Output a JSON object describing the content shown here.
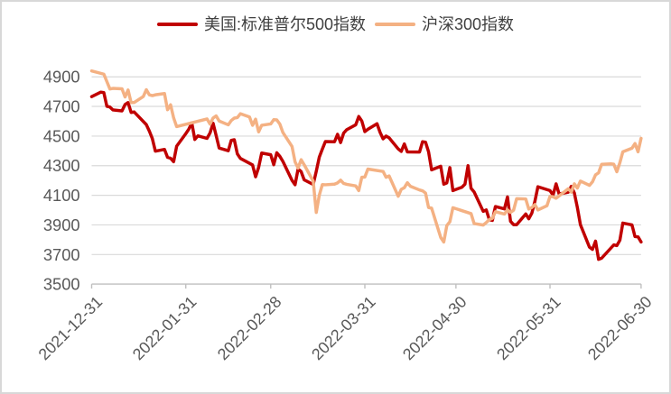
{
  "chart": {
    "frame_border_color": "#d8d8d8",
    "background": "#ffffff"
  },
  "chart_data": {
    "type": "line",
    "title": "",
    "xlabel": "",
    "ylabel": "",
    "ylim": [
      3500,
      4900
    ],
    "ytick_step": 200,
    "ytick_labels": [
      "3500",
      "3700",
      "3900",
      "4100",
      "4300",
      "4500",
      "4700",
      "4900"
    ],
    "xtick_labels": [
      "2021-12-31",
      "2022-01-31",
      "2022-02-28",
      "2022-03-31",
      "2022-04-30",
      "2022-05-31",
      "2022-06-30"
    ],
    "x_range": [
      "2021-12-31",
      "2022-06-30"
    ],
    "grid": "horizontal",
    "grid_color": "#d9d9d9",
    "axis_color": "#bfbfbf",
    "tick_label_color": "#595959",
    "legend_position": "top-center",
    "series": [
      {
        "name": "美国:标准普尔500指数",
        "color": "#c00000",
        "points": [
          [
            "2021-12-31",
            4766
          ],
          [
            "2022-01-03",
            4797
          ],
          [
            "2022-01-04",
            4793
          ],
          [
            "2022-01-05",
            4701
          ],
          [
            "2022-01-06",
            4696
          ],
          [
            "2022-01-07",
            4677
          ],
          [
            "2022-01-10",
            4670
          ],
          [
            "2022-01-11",
            4713
          ],
          [
            "2022-01-12",
            4726
          ],
          [
            "2022-01-13",
            4659
          ],
          [
            "2022-01-14",
            4663
          ],
          [
            "2022-01-18",
            4577
          ],
          [
            "2022-01-19",
            4533
          ],
          [
            "2022-01-20",
            4483
          ],
          [
            "2022-01-21",
            4398
          ],
          [
            "2022-01-24",
            4410
          ],
          [
            "2022-01-25",
            4356
          ],
          [
            "2022-01-26",
            4350
          ],
          [
            "2022-01-27",
            4327
          ],
          [
            "2022-01-28",
            4432
          ],
          [
            "2022-01-31",
            4516
          ],
          [
            "2022-02-01",
            4547
          ],
          [
            "2022-02-02",
            4589
          ],
          [
            "2022-02-03",
            4477
          ],
          [
            "2022-02-04",
            4501
          ],
          [
            "2022-02-07",
            4484
          ],
          [
            "2022-02-08",
            4521
          ],
          [
            "2022-02-09",
            4587
          ],
          [
            "2022-02-10",
            4504
          ],
          [
            "2022-02-11",
            4419
          ],
          [
            "2022-02-14",
            4401
          ],
          [
            "2022-02-15",
            4471
          ],
          [
            "2022-02-16",
            4475
          ],
          [
            "2022-02-17",
            4380
          ],
          [
            "2022-02-18",
            4349
          ],
          [
            "2022-02-22",
            4305
          ],
          [
            "2022-02-23",
            4225
          ],
          [
            "2022-02-24",
            4288
          ],
          [
            "2022-02-25",
            4385
          ],
          [
            "2022-02-28",
            4374
          ],
          [
            "2022-03-01",
            4306
          ],
          [
            "2022-03-02",
            4387
          ],
          [
            "2022-03-03",
            4363
          ],
          [
            "2022-03-04",
            4329
          ],
          [
            "2022-03-07",
            4201
          ],
          [
            "2022-03-08",
            4171
          ],
          [
            "2022-03-09",
            4278
          ],
          [
            "2022-03-10",
            4260
          ],
          [
            "2022-03-11",
            4204
          ],
          [
            "2022-03-14",
            4173
          ],
          [
            "2022-03-15",
            4262
          ],
          [
            "2022-03-16",
            4358
          ],
          [
            "2022-03-17",
            4412
          ],
          [
            "2022-03-18",
            4463
          ],
          [
            "2022-03-21",
            4461
          ],
          [
            "2022-03-22",
            4512
          ],
          [
            "2022-03-23",
            4456
          ],
          [
            "2022-03-24",
            4520
          ],
          [
            "2022-03-25",
            4543
          ],
          [
            "2022-03-28",
            4576
          ],
          [
            "2022-03-29",
            4632
          ],
          [
            "2022-03-30",
            4602
          ],
          [
            "2022-03-31",
            4530
          ],
          [
            "2022-04-01",
            4546
          ],
          [
            "2022-04-04",
            4583
          ],
          [
            "2022-04-05",
            4525
          ],
          [
            "2022-04-06",
            4481
          ],
          [
            "2022-04-07",
            4500
          ],
          [
            "2022-04-08",
            4488
          ],
          [
            "2022-04-11",
            4413
          ],
          [
            "2022-04-12",
            4397
          ],
          [
            "2022-04-13",
            4447
          ],
          [
            "2022-04-14",
            4393
          ],
          [
            "2022-04-18",
            4392
          ],
          [
            "2022-04-19",
            4462
          ],
          [
            "2022-04-20",
            4459
          ],
          [
            "2022-04-21",
            4394
          ],
          [
            "2022-04-22",
            4272
          ],
          [
            "2022-04-25",
            4296
          ],
          [
            "2022-04-26",
            4175
          ],
          [
            "2022-04-27",
            4184
          ],
          [
            "2022-04-28",
            4287
          ],
          [
            "2022-04-29",
            4132
          ],
          [
            "2022-05-02",
            4155
          ],
          [
            "2022-05-03",
            4175
          ],
          [
            "2022-05-04",
            4300
          ],
          [
            "2022-05-05",
            4147
          ],
          [
            "2022-05-06",
            4123
          ],
          [
            "2022-05-09",
            3991
          ],
          [
            "2022-05-10",
            4001
          ],
          [
            "2022-05-11",
            3935
          ],
          [
            "2022-05-12",
            3930
          ],
          [
            "2022-05-13",
            4024
          ],
          [
            "2022-05-16",
            4008
          ],
          [
            "2022-05-17",
            4089
          ],
          [
            "2022-05-18",
            3924
          ],
          [
            "2022-05-19",
            3901
          ],
          [
            "2022-05-20",
            3901
          ],
          [
            "2022-05-23",
            3974
          ],
          [
            "2022-05-24",
            3941
          ],
          [
            "2022-05-25",
            3979
          ],
          [
            "2022-05-26",
            4058
          ],
          [
            "2022-05-27",
            4158
          ],
          [
            "2022-05-31",
            4132
          ],
          [
            "2022-06-01",
            4101
          ],
          [
            "2022-06-02",
            4177
          ],
          [
            "2022-06-03",
            4109
          ],
          [
            "2022-06-06",
            4121
          ],
          [
            "2022-06-07",
            4160
          ],
          [
            "2022-06-08",
            4116
          ],
          [
            "2022-06-09",
            4017
          ],
          [
            "2022-06-10",
            3901
          ],
          [
            "2022-06-13",
            3750
          ],
          [
            "2022-06-14",
            3735
          ],
          [
            "2022-06-15",
            3790
          ],
          [
            "2022-06-16",
            3667
          ],
          [
            "2022-06-17",
            3675
          ],
          [
            "2022-06-21",
            3765
          ],
          [
            "2022-06-22",
            3760
          ],
          [
            "2022-06-23",
            3796
          ],
          [
            "2022-06-24",
            3912
          ],
          [
            "2022-06-27",
            3900
          ],
          [
            "2022-06-28",
            3821
          ],
          [
            "2022-06-29",
            3819
          ],
          [
            "2022-06-30",
            3785
          ]
        ]
      },
      {
        "name": "沪深300指数",
        "color": "#f4b183",
        "points": [
          [
            "2021-12-31",
            4940
          ],
          [
            "2022-01-04",
            4918
          ],
          [
            "2022-01-05",
            4868
          ],
          [
            "2022-01-06",
            4818
          ],
          [
            "2022-01-07",
            4822
          ],
          [
            "2022-01-10",
            4819
          ],
          [
            "2022-01-11",
            4764
          ],
          [
            "2022-01-12",
            4811
          ],
          [
            "2022-01-13",
            4726
          ],
          [
            "2022-01-14",
            4727
          ],
          [
            "2022-01-17",
            4767
          ],
          [
            "2022-01-18",
            4813
          ],
          [
            "2022-01-19",
            4778
          ],
          [
            "2022-01-20",
            4773
          ],
          [
            "2022-01-21",
            4779
          ],
          [
            "2022-01-24",
            4787
          ],
          [
            "2022-01-25",
            4678
          ],
          [
            "2022-01-26",
            4711
          ],
          [
            "2022-01-27",
            4623
          ],
          [
            "2022-01-28",
            4564
          ],
          [
            "2022-02-07",
            4616
          ],
          [
            "2022-02-08",
            4581
          ],
          [
            "2022-02-09",
            4622
          ],
          [
            "2022-02-10",
            4636
          ],
          [
            "2022-02-11",
            4601
          ],
          [
            "2022-02-14",
            4576
          ],
          [
            "2022-02-15",
            4605
          ],
          [
            "2022-02-16",
            4621
          ],
          [
            "2022-02-17",
            4625
          ],
          [
            "2022-02-18",
            4651
          ],
          [
            "2022-02-21",
            4629
          ],
          [
            "2022-02-22",
            4573
          ],
          [
            "2022-02-23",
            4614
          ],
          [
            "2022-02-24",
            4528
          ],
          [
            "2022-02-25",
            4573
          ],
          [
            "2022-02-28",
            4582
          ],
          [
            "2022-03-01",
            4611
          ],
          [
            "2022-03-02",
            4609
          ],
          [
            "2022-03-03",
            4581
          ],
          [
            "2022-03-04",
            4524
          ],
          [
            "2022-03-07",
            4430
          ],
          [
            "2022-03-08",
            4326
          ],
          [
            "2022-03-09",
            4284
          ],
          [
            "2022-03-10",
            4340
          ],
          [
            "2022-03-11",
            4306
          ],
          [
            "2022-03-14",
            4195
          ],
          [
            "2022-03-15",
            3984
          ],
          [
            "2022-03-16",
            4101
          ],
          [
            "2022-03-17",
            4172
          ],
          [
            "2022-03-18",
            4171
          ],
          [
            "2022-03-21",
            4175
          ],
          [
            "2022-03-22",
            4184
          ],
          [
            "2022-03-23",
            4202
          ],
          [
            "2022-03-24",
            4180
          ],
          [
            "2022-03-25",
            4174
          ],
          [
            "2022-03-28",
            4163
          ],
          [
            "2022-03-29",
            4132
          ],
          [
            "2022-03-30",
            4222
          ],
          [
            "2022-03-31",
            4223
          ],
          [
            "2022-04-01",
            4277
          ],
          [
            "2022-04-06",
            4261
          ],
          [
            "2022-04-07",
            4222
          ],
          [
            "2022-04-08",
            4231
          ],
          [
            "2022-04-11",
            4093
          ],
          [
            "2022-04-12",
            4140
          ],
          [
            "2022-04-13",
            4151
          ],
          [
            "2022-04-14",
            4185
          ],
          [
            "2022-04-15",
            4161
          ],
          [
            "2022-04-18",
            4136
          ],
          [
            "2022-04-19",
            4130
          ],
          [
            "2022-04-20",
            4115
          ],
          [
            "2022-04-21",
            4017
          ],
          [
            "2022-04-22",
            4013
          ],
          [
            "2022-04-25",
            3815
          ],
          [
            "2022-04-26",
            3784
          ],
          [
            "2022-04-27",
            3895
          ],
          [
            "2022-04-28",
            3921
          ],
          [
            "2022-04-29",
            4016
          ],
          [
            "2022-05-05",
            3976
          ],
          [
            "2022-05-06",
            3909
          ],
          [
            "2022-05-09",
            3899
          ],
          [
            "2022-05-10",
            3916
          ],
          [
            "2022-05-11",
            3936
          ],
          [
            "2022-05-12",
            3944
          ],
          [
            "2022-05-13",
            3989
          ],
          [
            "2022-05-16",
            3973
          ],
          [
            "2022-05-17",
            4001
          ],
          [
            "2022-05-18",
            3984
          ],
          [
            "2022-05-19",
            3999
          ],
          [
            "2022-05-20",
            4077
          ],
          [
            "2022-05-23",
            4075
          ],
          [
            "2022-05-24",
            4007
          ],
          [
            "2022-05-25",
            4017
          ],
          [
            "2022-05-26",
            4037
          ],
          [
            "2022-05-27",
            4001
          ],
          [
            "2022-05-30",
            4029
          ],
          [
            "2022-05-31",
            4092
          ],
          [
            "2022-06-01",
            4090
          ],
          [
            "2022-06-02",
            4080
          ],
          [
            "2022-06-06",
            4144
          ],
          [
            "2022-06-07",
            4121
          ],
          [
            "2022-06-08",
            4177
          ],
          [
            "2022-06-09",
            4149
          ],
          [
            "2022-06-10",
            4196
          ],
          [
            "2022-06-13",
            4167
          ],
          [
            "2022-06-14",
            4191
          ],
          [
            "2022-06-15",
            4238
          ],
          [
            "2022-06-16",
            4252
          ],
          [
            "2022-06-17",
            4309
          ],
          [
            "2022-06-20",
            4312
          ],
          [
            "2022-06-21",
            4310
          ],
          [
            "2022-06-22",
            4259
          ],
          [
            "2022-06-23",
            4320
          ],
          [
            "2022-06-24",
            4394
          ],
          [
            "2022-06-27",
            4418
          ],
          [
            "2022-06-28",
            4450
          ],
          [
            "2022-06-29",
            4394
          ],
          [
            "2022-06-30",
            4485
          ]
        ]
      }
    ]
  }
}
